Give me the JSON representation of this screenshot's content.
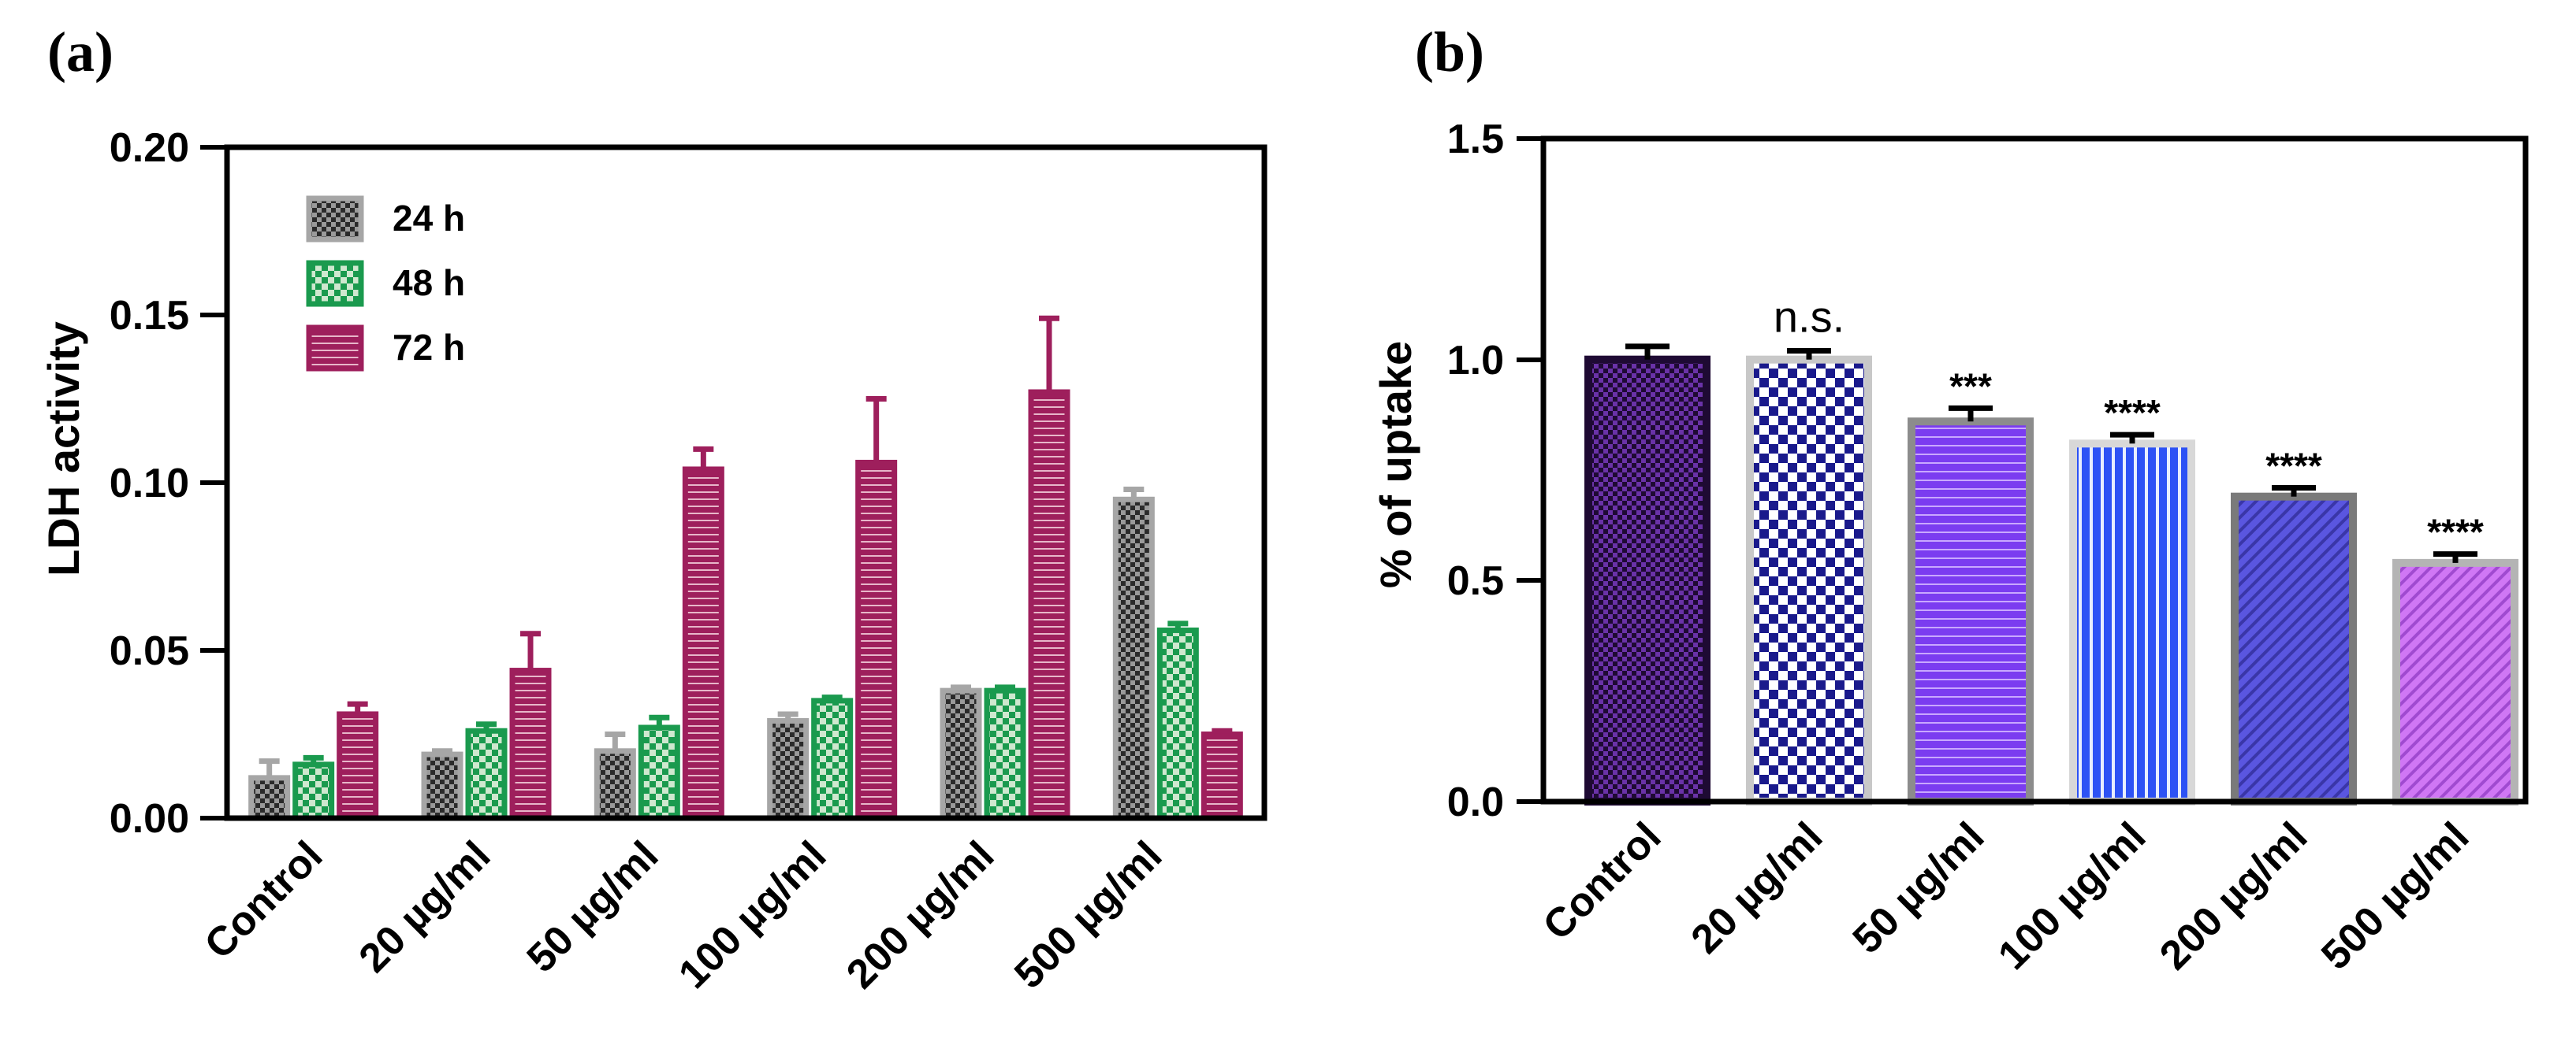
{
  "colors": {
    "gray": "#a6a6a6",
    "green": "#1a9a4e",
    "maroon": "#9e1f5c",
    "b_control": "#3a1460",
    "b_20": "#1a1a8c",
    "b_50": "#7b3cf0",
    "b_100": "#2d52f5",
    "b_200": "#5a56e0",
    "b_500": "#d077f5",
    "b_border": "#b0b0b0"
  },
  "chart_data": [
    {
      "panel": "(a)",
      "type": "bar",
      "title": "",
      "xlabel": "",
      "ylabel": "LDH activity",
      "ylim": [
        0,
        0.2
      ],
      "yticks": [
        "0.00",
        "0.05",
        "0.10",
        "0.15",
        "0.20"
      ],
      "categories": [
        "Control",
        "20 µg/ml",
        "50 µg/ml",
        "100 µg/ml",
        "200 µg/ml",
        "500 µg/ml"
      ],
      "legend_position": "top-left",
      "series": [
        {
          "name": "24 h",
          "values": [
            0.012,
            0.019,
            0.02,
            0.029,
            0.038,
            0.095
          ],
          "errors": [
            0.005,
            0.001,
            0.005,
            0.002,
            0.001,
            0.003
          ]
        },
        {
          "name": "48 h",
          "values": [
            0.016,
            0.026,
            0.027,
            0.035,
            0.038,
            0.056
          ],
          "errors": [
            0.002,
            0.002,
            0.003,
            0.001,
            0.001,
            0.002
          ]
        },
        {
          "name": "72 h",
          "values": [
            0.031,
            0.044,
            0.104,
            0.106,
            0.127,
            0.025
          ],
          "errors": [
            0.003,
            0.011,
            0.006,
            0.019,
            0.022,
            0.001
          ]
        }
      ]
    },
    {
      "panel": "(b)",
      "type": "bar",
      "title": "",
      "xlabel": "",
      "ylabel": "% of  uptake",
      "ylim": [
        0,
        1.5
      ],
      "yticks": [
        "0.0",
        "0.5",
        "1.0",
        "1.5"
      ],
      "categories": [
        "Control",
        "20 µg/ml",
        "50 µg/ml",
        "100 µg/ml",
        "200 µg/ml",
        "500 µg/ml"
      ],
      "values": [
        1.0,
        1.0,
        0.86,
        0.81,
        0.69,
        0.54
      ],
      "errors": [
        0.03,
        0.02,
        0.03,
        0.02,
        0.02,
        0.02
      ],
      "annotations": [
        "",
        "n.s.",
        "***",
        "****",
        "****",
        "****"
      ]
    }
  ]
}
